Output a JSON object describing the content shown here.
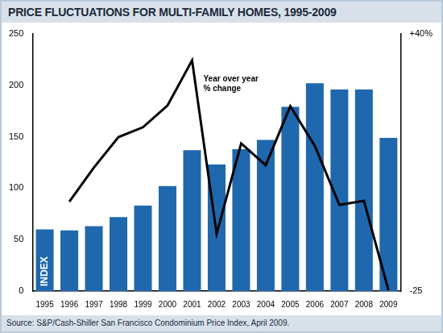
{
  "chart_data": {
    "type": "bar",
    "title": "PRICE FLUCTUATIONS FOR MULTI-FAMILY HOMES, 1995-2009",
    "source": "Source: S&P/Cash-Shiller San Francisco Condominium Price Index, April 2009.",
    "categories": [
      "1995",
      "1996",
      "1997",
      "1998",
      "1999",
      "2000",
      "2001",
      "2002",
      "2003",
      "2004",
      "2005",
      "2006",
      "2007",
      "2008",
      "2009"
    ],
    "series": [
      {
        "type": "bar",
        "color": "#1f68ad",
        "values": [
          60,
          59,
          63,
          72,
          83,
          102,
          137,
          123,
          138,
          147,
          179,
          202,
          196,
          196,
          149
        ]
      },
      {
        "type": "line",
        "color": "#000000",
        "axis": "y2",
        "values": [
          null,
          -2.4,
          6.2,
          13.9,
          16.4,
          21.9,
          33.3,
          -10.5,
          12.3,
          6.8,
          21.7,
          11.7,
          -3.2,
          -2.2,
          -24.8
        ]
      }
    ],
    "annotations": {
      "line_label": [
        "Year over year",
        "% change"
      ],
      "bar_label": "INDEX"
    },
    "ylim": [
      0,
      250
    ],
    "yticks": [
      0,
      50,
      100,
      150,
      200,
      250
    ],
    "y2lim": [
      -25,
      40
    ],
    "y2ticks": [
      -25,
      {
        "value": 40,
        "label": "+40%"
      }
    ],
    "grid": false,
    "legend": "none"
  }
}
